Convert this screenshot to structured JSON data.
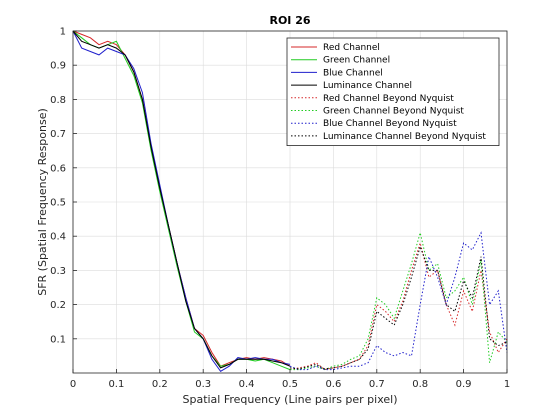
{
  "chart_data": {
    "type": "line",
    "title": "ROI 26",
    "xlabel": "Spatial Frequency (Line pairs per pixel)",
    "ylabel": "SFR (Spatial Frequency Response)",
    "xlim": [
      0,
      1
    ],
    "ylim": [
      0,
      1
    ],
    "xticks": [
      "0",
      "0.1",
      "0.2",
      "0.3",
      "0.4",
      "0.5",
      "0.6",
      "0.7",
      "0.8",
      "0.9",
      "1"
    ],
    "yticks": [
      "0.1",
      "0.2",
      "0.3",
      "0.4",
      "0.5",
      "0.6",
      "0.7",
      "0.8",
      "0.9",
      "1"
    ],
    "grid": true,
    "legend_position": "top-right",
    "series": [
      {
        "name": "Red Channel",
        "color": "#d62728",
        "style": "solid",
        "x": [
          0,
          0.02,
          0.04,
          0.06,
          0.08,
          0.1,
          0.12,
          0.14,
          0.16,
          0.18,
          0.2,
          0.22,
          0.24,
          0.26,
          0.28,
          0.3,
          0.32,
          0.34,
          0.36,
          0.38,
          0.4,
          0.42,
          0.44,
          0.46,
          0.48,
          0.5
        ],
        "y": [
          1,
          0.99,
          0.98,
          0.96,
          0.97,
          0.96,
          0.93,
          0.88,
          0.8,
          0.66,
          0.54,
          0.43,
          0.32,
          0.22,
          0.13,
          0.11,
          0.06,
          0.02,
          0.03,
          0.04,
          0.045,
          0.04,
          0.045,
          0.04,
          0.035,
          0.02
        ]
      },
      {
        "name": "Green Channel",
        "color": "#22cc22",
        "style": "solid",
        "x": [
          0,
          0.02,
          0.04,
          0.06,
          0.08,
          0.1,
          0.12,
          0.14,
          0.16,
          0.18,
          0.2,
          0.22,
          0.24,
          0.26,
          0.28,
          0.3,
          0.32,
          0.34,
          0.36,
          0.38,
          0.4,
          0.42,
          0.44,
          0.46,
          0.48,
          0.5
        ],
        "y": [
          1,
          0.98,
          0.96,
          0.95,
          0.96,
          0.97,
          0.92,
          0.87,
          0.79,
          0.65,
          0.53,
          0.42,
          0.31,
          0.21,
          0.12,
          0.1,
          0.05,
          0.02,
          0.025,
          0.04,
          0.04,
          0.035,
          0.04,
          0.03,
          0.02,
          0.01
        ]
      },
      {
        "name": "Blue Channel",
        "color": "#1f1fcc",
        "style": "solid",
        "x": [
          0,
          0.02,
          0.04,
          0.06,
          0.08,
          0.1,
          0.12,
          0.14,
          0.16,
          0.18,
          0.2,
          0.22,
          0.24,
          0.26,
          0.28,
          0.3,
          0.32,
          0.34,
          0.36,
          0.38,
          0.4,
          0.42,
          0.44,
          0.46,
          0.48,
          0.5
        ],
        "y": [
          1,
          0.95,
          0.94,
          0.93,
          0.95,
          0.94,
          0.93,
          0.89,
          0.82,
          0.67,
          0.55,
          0.43,
          0.32,
          0.22,
          0.13,
          0.1,
          0.04,
          0.005,
          0.02,
          0.045,
          0.04,
          0.045,
          0.04,
          0.04,
          0.03,
          0.025
        ]
      },
      {
        "name": "Luminance Channel",
        "color": "#000000",
        "style": "solid",
        "x": [
          0,
          0.02,
          0.04,
          0.06,
          0.08,
          0.1,
          0.12,
          0.14,
          0.16,
          0.18,
          0.2,
          0.22,
          0.24,
          0.26,
          0.28,
          0.3,
          0.32,
          0.34,
          0.36,
          0.38,
          0.4,
          0.42,
          0.44,
          0.46,
          0.48,
          0.5
        ],
        "y": [
          1,
          0.97,
          0.96,
          0.95,
          0.96,
          0.95,
          0.93,
          0.88,
          0.8,
          0.66,
          0.54,
          0.43,
          0.32,
          0.21,
          0.13,
          0.1,
          0.05,
          0.015,
          0.025,
          0.04,
          0.04,
          0.04,
          0.04,
          0.035,
          0.03,
          0.02
        ]
      },
      {
        "name": "Red Channel Beyond Nyquist",
        "color": "#d62728",
        "style": "dotted",
        "x": [
          0.5,
          0.52,
          0.54,
          0.56,
          0.58,
          0.6,
          0.62,
          0.64,
          0.66,
          0.68,
          0.7,
          0.72,
          0.74,
          0.76,
          0.78,
          0.8,
          0.82,
          0.84,
          0.86,
          0.88,
          0.9,
          0.92,
          0.94,
          0.96,
          0.98,
          1
        ],
        "y": [
          0.01,
          0.015,
          0.02,
          0.03,
          0.01,
          0.015,
          0.02,
          0.03,
          0.04,
          0.08,
          0.2,
          0.18,
          0.15,
          0.21,
          0.3,
          0.38,
          0.28,
          0.3,
          0.2,
          0.14,
          0.24,
          0.18,
          0.3,
          0.12,
          0.06,
          0.1
        ]
      },
      {
        "name": "Green Channel Beyond Nyquist",
        "color": "#22cc22",
        "style": "dotted",
        "x": [
          0.5,
          0.52,
          0.54,
          0.56,
          0.58,
          0.6,
          0.62,
          0.64,
          0.66,
          0.68,
          0.7,
          0.72,
          0.74,
          0.76,
          0.78,
          0.8,
          0.82,
          0.84,
          0.86,
          0.88,
          0.9,
          0.92,
          0.94,
          0.96,
          0.98,
          1
        ],
        "y": [
          0.01,
          0.01,
          0.015,
          0.02,
          0.01,
          0.02,
          0.025,
          0.04,
          0.05,
          0.1,
          0.22,
          0.2,
          0.16,
          0.24,
          0.32,
          0.41,
          0.3,
          0.32,
          0.22,
          0.24,
          0.28,
          0.2,
          0.33,
          0.03,
          0.12,
          0.09
        ]
      },
      {
        "name": "Blue Channel Beyond Nyquist",
        "color": "#1f1fcc",
        "style": "dotted",
        "x": [
          0.5,
          0.52,
          0.54,
          0.56,
          0.58,
          0.6,
          0.62,
          0.64,
          0.66,
          0.68,
          0.7,
          0.72,
          0.74,
          0.76,
          0.78,
          0.8,
          0.82,
          0.84,
          0.86,
          0.88,
          0.9,
          0.92,
          0.94,
          0.96,
          0.98,
          1
        ],
        "y": [
          0.02,
          0.01,
          0.01,
          0.02,
          0.01,
          0.01,
          0.015,
          0.02,
          0.02,
          0.03,
          0.08,
          0.06,
          0.05,
          0.06,
          0.05,
          0.2,
          0.34,
          0.28,
          0.2,
          0.28,
          0.38,
          0.36,
          0.41,
          0.2,
          0.24,
          0.06
        ]
      },
      {
        "name": "Luminance Channel Beyond Nyquist",
        "color": "#000000",
        "style": "dotted",
        "x": [
          0.5,
          0.52,
          0.54,
          0.56,
          0.58,
          0.6,
          0.62,
          0.64,
          0.66,
          0.68,
          0.7,
          0.72,
          0.74,
          0.76,
          0.78,
          0.8,
          0.82,
          0.84,
          0.86,
          0.88,
          0.9,
          0.92,
          0.94,
          0.96,
          0.98,
          1
        ],
        "y": [
          0.015,
          0.012,
          0.018,
          0.025,
          0.012,
          0.015,
          0.02,
          0.03,
          0.04,
          0.07,
          0.18,
          0.16,
          0.14,
          0.2,
          0.28,
          0.37,
          0.3,
          0.3,
          0.2,
          0.18,
          0.27,
          0.22,
          0.34,
          0.1,
          0.08,
          0.09
        ]
      }
    ]
  }
}
